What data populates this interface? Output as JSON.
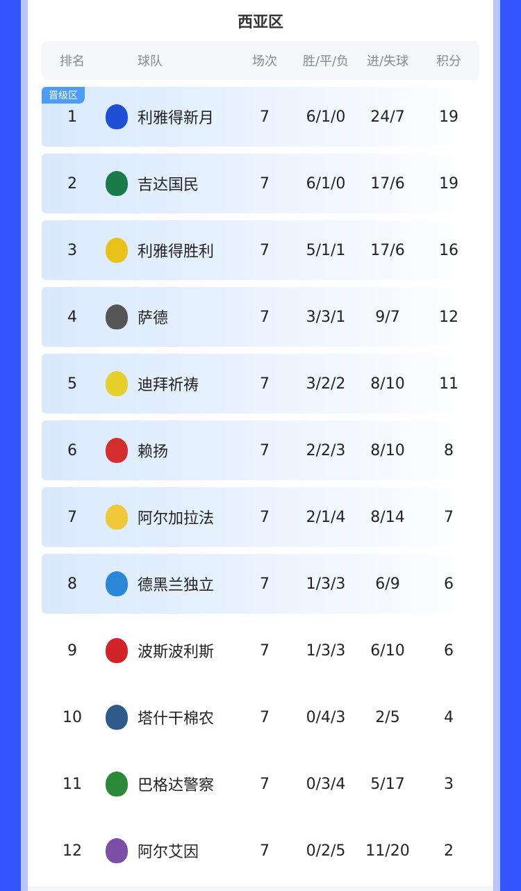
{
  "title": "西亚区",
  "header": {
    "rank": "排名",
    "team": "球队",
    "played": "场次",
    "wdl": "胜/平/负",
    "goals": "进/失球",
    "points": "积分"
  },
  "badge": "晋级区",
  "colors": {
    "outer": "#3355ff",
    "badge": "#4d9cf5",
    "highlight": "#d9e9fd"
  },
  "rows": [
    {
      "rank": "1",
      "team": "利雅得新月",
      "played": "7",
      "wdl": "6/1/0",
      "goals": "24/7",
      "points": "19",
      "logo": "al-hilal-logo",
      "color": "#1f4fd6",
      "qualified": true
    },
    {
      "rank": "2",
      "team": "吉达国民",
      "played": "7",
      "wdl": "6/1/0",
      "goals": "17/6",
      "points": "19",
      "logo": "al-ahli-logo",
      "color": "#1a7a4a",
      "qualified": true
    },
    {
      "rank": "3",
      "team": "利雅得胜利",
      "played": "7",
      "wdl": "5/1/1",
      "goals": "17/6",
      "points": "16",
      "logo": "al-nassr-logo",
      "color": "#e8c21a",
      "qualified": true
    },
    {
      "rank": "4",
      "team": "萨德",
      "played": "7",
      "wdl": "3/3/1",
      "goals": "9/7",
      "points": "12",
      "logo": "al-sadd-logo",
      "color": "#555555",
      "qualified": true
    },
    {
      "rank": "5",
      "team": "迪拜祈祷",
      "played": "7",
      "wdl": "3/2/2",
      "goals": "8/10",
      "points": "11",
      "logo": "al-wasl-logo",
      "color": "#e5cf2a",
      "qualified": true
    },
    {
      "rank": "6",
      "team": "赖扬",
      "played": "7",
      "wdl": "2/2/3",
      "goals": "8/10",
      "points": "8",
      "logo": "al-rayyan-logo",
      "color": "#d32d2d",
      "qualified": true
    },
    {
      "rank": "7",
      "team": "阿尔加拉法",
      "played": "7",
      "wdl": "2/1/4",
      "goals": "8/14",
      "points": "7",
      "logo": "al-gharafa-logo",
      "color": "#f0c93a",
      "qualified": true
    },
    {
      "rank": "8",
      "team": "德黑兰独立",
      "played": "7",
      "wdl": "1/3/3",
      "goals": "6/9",
      "points": "6",
      "logo": "esteghlal-logo",
      "color": "#2a86d6",
      "qualified": true
    },
    {
      "rank": "9",
      "team": "波斯波利斯",
      "played": "7",
      "wdl": "1/3/3",
      "goals": "6/10",
      "points": "6",
      "logo": "persepolis-logo",
      "color": "#d0232a",
      "qualified": false
    },
    {
      "rank": "10",
      "team": "塔什干棉农",
      "played": "7",
      "wdl": "0/4/3",
      "goals": "2/5",
      "points": "4",
      "logo": "pakhtakor-logo",
      "color": "#2f5a8a",
      "qualified": false
    },
    {
      "rank": "11",
      "team": "巴格达警察",
      "played": "7",
      "wdl": "0/3/4",
      "goals": "5/17",
      "points": "3",
      "logo": "al-shorta-logo",
      "color": "#2a8a3a",
      "qualified": false
    },
    {
      "rank": "12",
      "team": "阿尔艾因",
      "played": "7",
      "wdl": "0/2/5",
      "goals": "11/20",
      "points": "2",
      "logo": "al-ain-logo",
      "color": "#7b4fa8",
      "qualified": false
    }
  ]
}
